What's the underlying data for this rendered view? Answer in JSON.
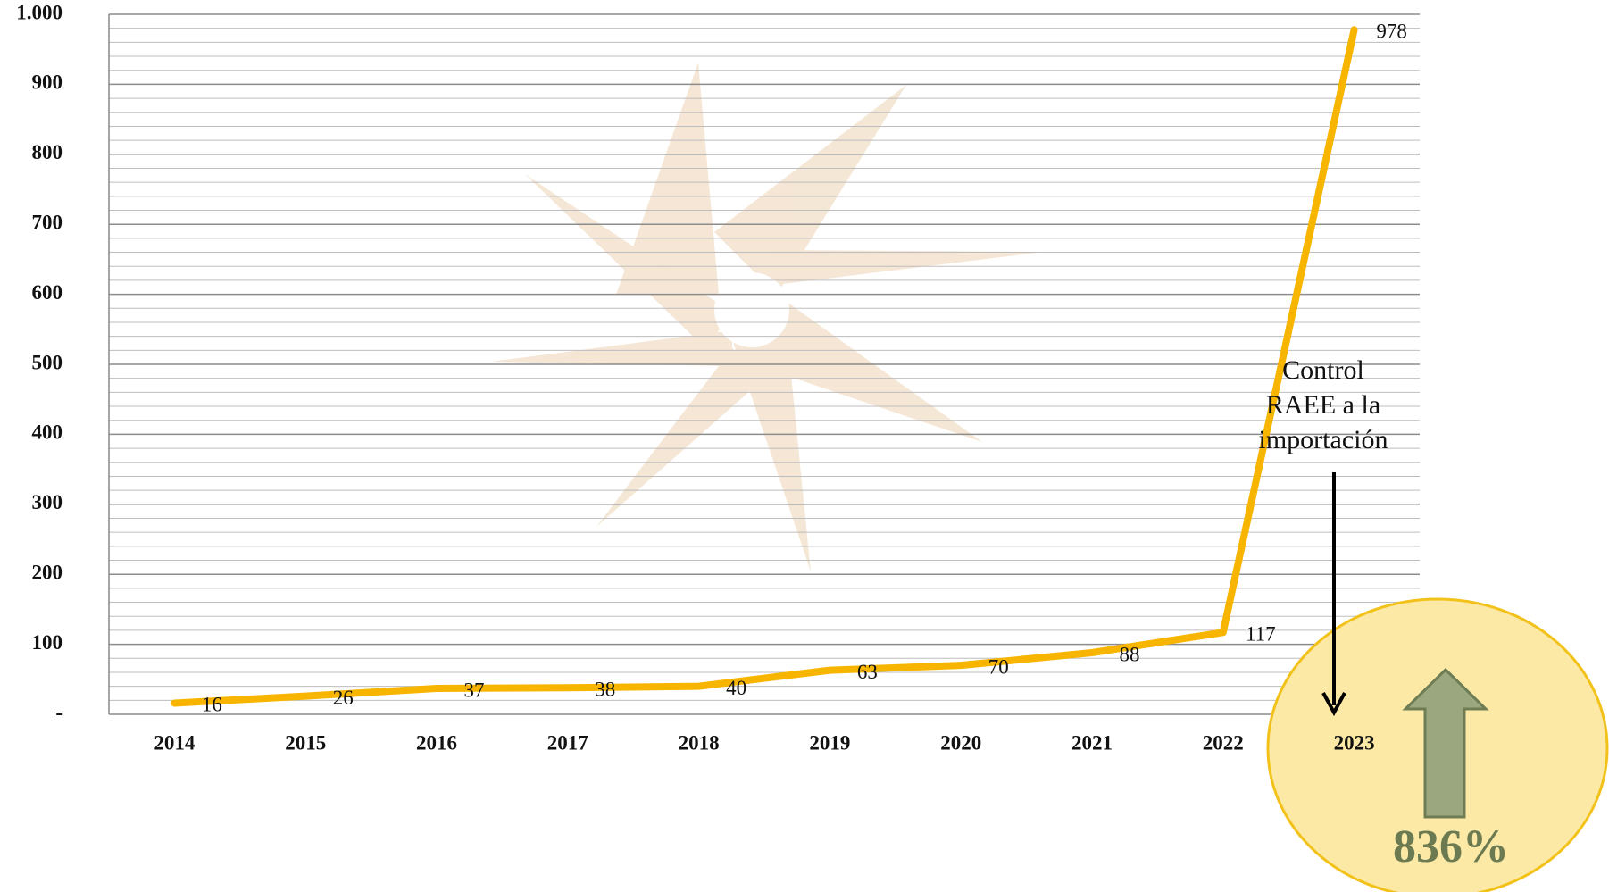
{
  "chart_data": {
    "type": "line",
    "categories": [
      "2014",
      "2015",
      "2016",
      "2017",
      "2018",
      "2019",
      "2020",
      "2021",
      "2022",
      "2023"
    ],
    "values": [
      16,
      26,
      37,
      38,
      40,
      63,
      70,
      88,
      117,
      978
    ],
    "color": "#f7b500",
    "ylim": [
      0,
      1000
    ],
    "yticks": [
      {
        "value": 0,
        "label": "-"
      },
      100,
      200,
      300,
      400,
      500,
      600,
      700,
      800,
      900,
      {
        "value": 1000,
        "label": "1.000"
      }
    ],
    "grid": true,
    "annotation_lines": [
      "Control",
      "RAEE a la",
      "importación"
    ],
    "growth_label": "836%"
  }
}
